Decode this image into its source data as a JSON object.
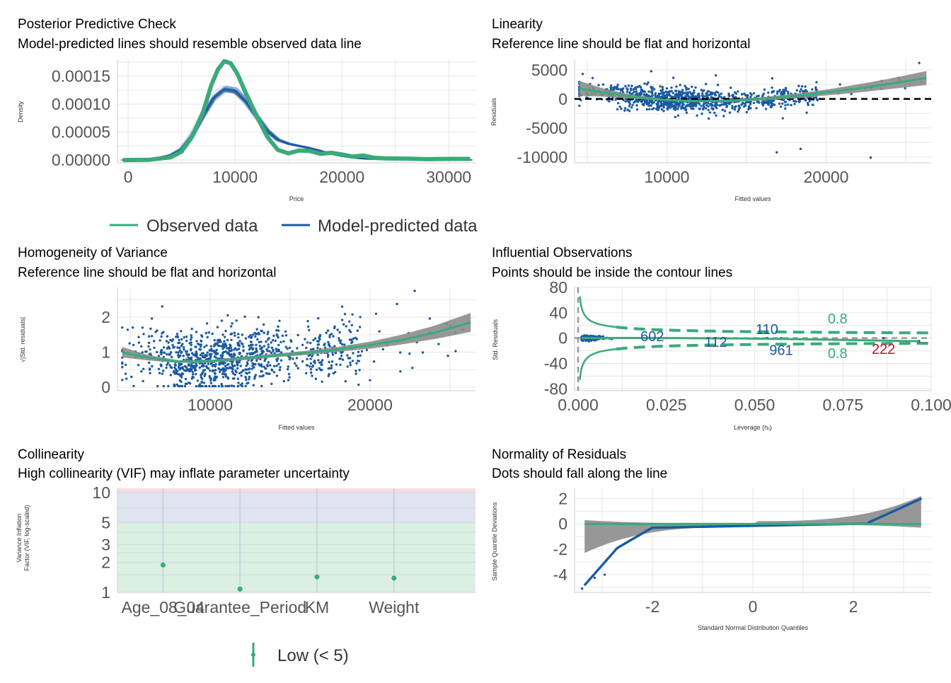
{
  "colors": {
    "observed": "#3aaa7a",
    "predicted": "#1b5aa0",
    "points": "#1b5aa0",
    "band": "#8c8c8c",
    "grid": "#e6e6e6",
    "highlight": "#c0142a",
    "vif_low": "#dcefe3",
    "vif_moderate": "#dfe4f0",
    "vif_high": "#f5dde0"
  },
  "chart_data": [
    {
      "id": "ppc",
      "type": "line",
      "title": "Posterior Predictive Check",
      "subtitle": "Model-predicted lines should resemble observed data line",
      "xlabel": "Price",
      "ylabel": "Density",
      "xlim": [
        -1000,
        32500
      ],
      "ylim": [
        -5e-06,
        0.00018
      ],
      "xticks": [
        0,
        10000,
        20000,
        30000
      ],
      "xtick_labels": [
        "0",
        "10000",
        "20000",
        "30000"
      ],
      "yticks": [
        0,
        5e-05,
        0.0001,
        0.00015
      ],
      "ytick_labels": [
        "0.00000",
        "0.00005",
        "0.00010",
        "0.00015"
      ],
      "series": [
        {
          "name": "Observed data",
          "x": [
            -500,
            2000,
            4000,
            5000,
            6000,
            7000,
            7800,
            8400,
            9000,
            9600,
            10200,
            11000,
            12000,
            13000,
            14000,
            15000,
            16000,
            17000,
            18000,
            19000,
            20000,
            21000,
            22000,
            23000,
            24000,
            26000,
            28000,
            30000,
            32000
          ],
          "y": [
            0,
            5e-07,
            5e-06,
            1.5e-05,
            4.2e-05,
            8.5e-05,
            0.000135,
            0.000162,
            0.000177,
            0.000173,
            0.000155,
            0.00012,
            8e-05,
            4.2e-05,
            1.8e-05,
            1.2e-05,
            1.7e-05,
            1.6e-05,
            1.1e-05,
            1.3e-05,
            1e-05,
            6e-06,
            8e-06,
            4e-06,
            3e-06,
            2.5e-06,
            1.5e-06,
            2e-06,
            2e-06
          ]
        },
        {
          "name": "Model-predicted data",
          "x": [
            -500,
            2000,
            4000,
            5000,
            6000,
            7000,
            8000,
            9000,
            10000,
            11000,
            12000,
            13000,
            14000,
            15000,
            16000,
            17000,
            18000,
            19000,
            20000,
            21000,
            22000,
            23000,
            24000,
            26000,
            28000,
            30000,
            32000
          ],
          "y": [
            0,
            1e-06,
            9e-06,
            2e-05,
            4.5e-05,
            8e-05,
            0.000112,
            0.000127,
            0.000124,
            0.000105,
            7.8e-05,
            5.2e-05,
            3.6e-05,
            2.9e-05,
            2.5e-05,
            2.1e-05,
            1.6e-05,
            1.1e-05,
            7e-06,
            4e-06,
            2.5e-06,
            1.5e-06,
            1e-06,
            5e-07,
            3e-07,
            2e-07,
            1e-07
          ]
        }
      ],
      "legend": [
        "Observed data",
        "Model-predicted data"
      ],
      "legend_position": "bottom"
    },
    {
      "id": "linearity",
      "type": "scatter",
      "title": "Linearity",
      "subtitle": "Reference line should be flat and horizontal",
      "xlabel": "Fitted values",
      "ylabel": "Residuals",
      "xlim": [
        4200,
        26600
      ],
      "ylim": [
        -11000,
        6800
      ],
      "xticks": [
        10000,
        20000
      ],
      "xtick_labels": [
        "10000",
        "20000"
      ],
      "yticks": [
        -10000,
        -5000,
        0,
        5000
      ],
      "ytick_labels": [
        "-10000",
        "-5000",
        "0",
        "5000"
      ],
      "reference_line": 0,
      "smooth": {
        "x": [
          4500,
          6000,
          8000,
          10000,
          12000,
          14000,
          16000,
          18000,
          20000,
          22000,
          24000,
          26300
        ],
        "y": [
          1800,
          1100,
          300,
          -200,
          -400,
          -300,
          0,
          500,
          1100,
          1800,
          2600,
          3600
        ],
        "band_lo": [
          500,
          400,
          0,
          -350,
          -550,
          -500,
          -300,
          100,
          600,
          1100,
          1700,
          2400
        ],
        "band_hi": [
          3100,
          1800,
          600,
          0,
          -250,
          -100,
          300,
          900,
          1600,
          2500,
          3500,
          4800
        ]
      }
    },
    {
      "id": "homogeneity",
      "type": "scatter",
      "title": "Homogeneity of Variance",
      "subtitle": "Reference line should be flat and horizontal",
      "xlabel": "Fitted values",
      "ylabel": "√|Std. residuals|",
      "xlim": [
        4200,
        26600
      ],
      "ylim": [
        -0.1,
        2.85
      ],
      "xticks": [
        10000,
        20000
      ],
      "xtick_labels": [
        "10000",
        "20000"
      ],
      "yticks": [
        0,
        1,
        2
      ],
      "ytick_labels": [
        "0",
        "1",
        "2"
      ],
      "smooth": {
        "x": [
          4500,
          6000,
          8000,
          10000,
          12000,
          14000,
          16000,
          18000,
          20000,
          22000,
          24000,
          26300
        ],
        "y": [
          1.0,
          0.85,
          0.73,
          0.74,
          0.82,
          0.9,
          0.98,
          1.08,
          1.2,
          1.35,
          1.55,
          1.85
        ],
        "band_lo": [
          0.85,
          0.77,
          0.69,
          0.7,
          0.77,
          0.85,
          0.92,
          1.01,
          1.1,
          1.22,
          1.37,
          1.58
        ],
        "band_hi": [
          1.15,
          0.93,
          0.77,
          0.78,
          0.87,
          0.95,
          1.04,
          1.15,
          1.3,
          1.5,
          1.75,
          2.12
        ]
      }
    },
    {
      "id": "influential",
      "type": "scatter",
      "title": "Influential Observations",
      "subtitle": "Points should be inside the contour lines",
      "xlabel": "Leverage (hᵢᵢ)",
      "ylabel": "Std. Residuals",
      "xlim": [
        -0.001,
        0.1
      ],
      "ylim": [
        -83,
        80
      ],
      "xticks": [
        0,
        0.025,
        0.05,
        0.075,
        0.1
      ],
      "xtick_labels": [
        "0.000",
        "0.025",
        "0.050",
        "0.075",
        "0.100"
      ],
      "yticks": [
        -80,
        -40,
        0,
        40,
        80
      ],
      "ytick_labels": [
        "-80",
        "-40",
        "0",
        "40",
        "80"
      ],
      "labeled_points": [
        {
          "label": "602",
          "x": 0.021,
          "y": 3
        },
        {
          "label": "112",
          "x": 0.039,
          "y": -6
        },
        {
          "label": "110",
          "x": 0.0535,
          "y": 14
        },
        {
          "label": "961",
          "x": 0.0575,
          "y": -19
        },
        {
          "label": "222",
          "x": 0.0865,
          "y": -17
        }
      ],
      "contour_labels": [
        {
          "label": "0.8",
          "x": 0.0735,
          "y": 31
        },
        {
          "label": "0.8",
          "x": 0.0735,
          "y": -24
        }
      ]
    },
    {
      "id": "collinearity",
      "type": "scatter",
      "title": "Collinearity",
      "subtitle": "High collinearity (VIF) may inflate parameter uncertainty",
      "xlabel": "",
      "ylabel": "Variance Inflation\nFactor (VIF, log-scaled)",
      "y_scale": "log",
      "ylim": [
        1,
        11
      ],
      "yticks": [
        1,
        2,
        3,
        5,
        10
      ],
      "ytick_labels": [
        "1",
        "2",
        "3",
        "5",
        "10"
      ],
      "categories": [
        "Age_08_04",
        "Guarantee_Period",
        "KM",
        "Weight"
      ],
      "values": [
        1.88,
        1.08,
        1.43,
        1.39
      ],
      "legend": [
        "Low (< 5)"
      ],
      "legend_position": "bottom"
    },
    {
      "id": "normality",
      "type": "scatter",
      "title": "Normality of Residuals",
      "subtitle": "Dots should fall along the line",
      "xlabel": "Standard Normal Distribution Quantiles",
      "ylabel": "Sample Quantile Deviations",
      "xlim": [
        -3.55,
        3.55
      ],
      "ylim": [
        -5.4,
        2.8
      ],
      "xticks": [
        -2,
        0,
        2
      ],
      "xtick_labels": [
        "-2",
        "0",
        "2"
      ],
      "yticks": [
        -4,
        -2,
        0,
        2
      ],
      "ytick_labels": [
        "-4",
        "-2",
        "0",
        "2"
      ],
      "reference_line": 0
    }
  ]
}
